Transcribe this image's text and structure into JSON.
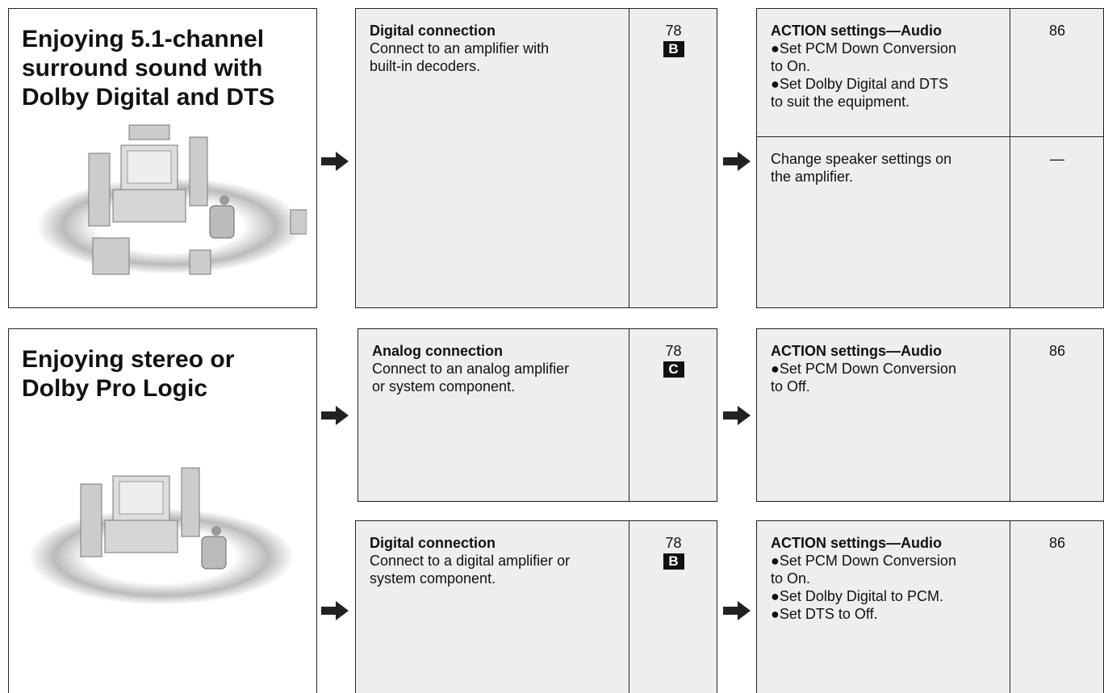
{
  "sections": [
    {
      "title_lines": [
        "Enjoying 5.1-channel",
        "surround sound with",
        "Dolby Digital and DTS"
      ],
      "connections": [
        {
          "heading": "Digital connection",
          "lines": [
            "Connect to an amplifier with",
            "built-in decoders."
          ],
          "page": "78",
          "badge": "B"
        }
      ],
      "settings": [
        {
          "heading": "ACTION settings—Audio",
          "lines": [
            "●Set PCM Down Conversion",
            "to On.",
            "●Set Dolby Digital and DTS",
            "to suit the equipment."
          ],
          "page": "86"
        },
        {
          "lines": [
            "Change speaker settings on",
            "the amplifier."
          ],
          "page": "—"
        }
      ]
    },
    {
      "title_lines": [
        "Enjoying stereo or",
        "Dolby Pro Logic"
      ],
      "connections": [
        {
          "heading": "Analog connection",
          "lines": [
            "Connect to an analog amplifier",
            "or system component."
          ],
          "page": "78",
          "badge": "C"
        },
        {
          "heading": "Digital connection",
          "lines": [
            "Connect to a digital amplifier or",
            "system component."
          ],
          "page": "78",
          "badge": "B"
        }
      ],
      "settings": [
        {
          "heading": "ACTION settings—Audio",
          "lines": [
            "●Set PCM Down Conversion",
            "to Off."
          ],
          "page": "86"
        },
        {
          "heading": "ACTION settings—Audio",
          "lines": [
            "●Set PCM Down Conversion",
            "to On.",
            "●Set Dolby Digital to PCM.",
            "●Set DTS to Off."
          ],
          "page": "86"
        }
      ]
    }
  ]
}
